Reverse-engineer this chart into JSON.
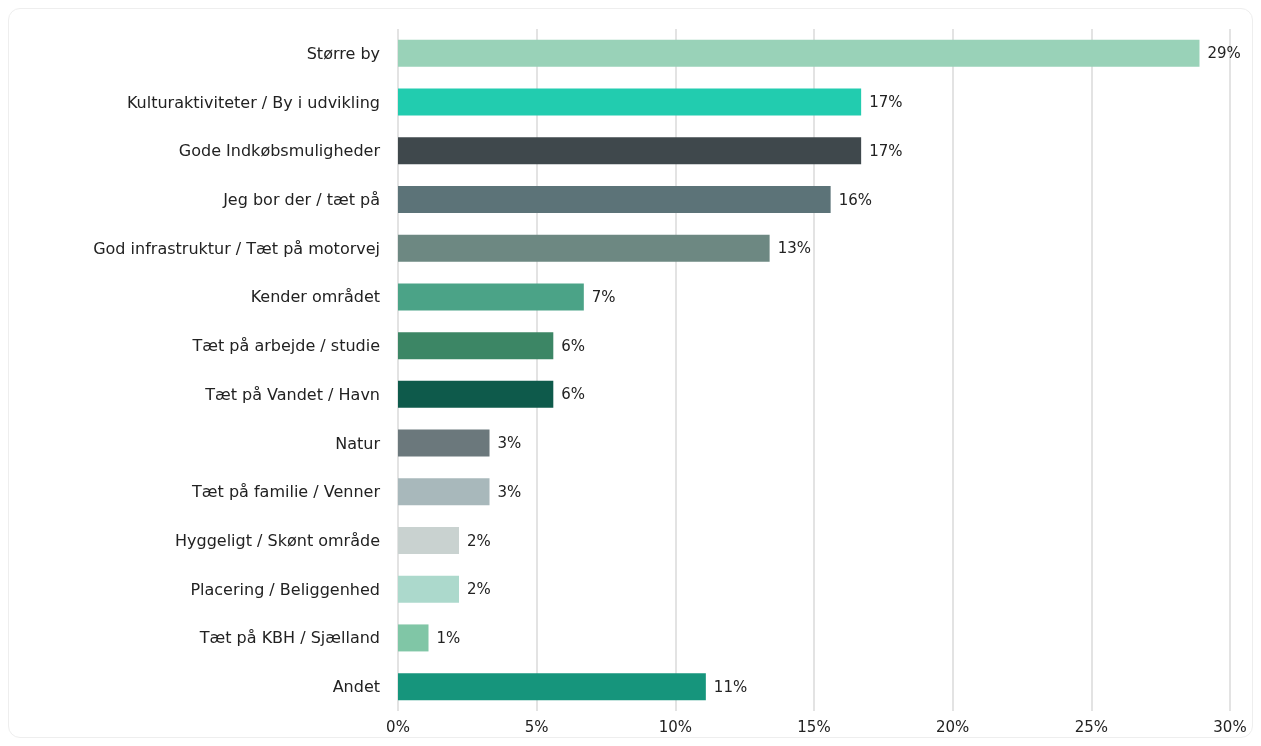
{
  "chart_data": {
    "type": "bar",
    "orientation": "horizontal",
    "categories": [
      "Større by",
      "Kulturaktiviteter / By i udvikling",
      "Gode Indkøbsmuligheder",
      "Jeg bor der / tæt på",
      "God infrastruktur / Tæt på motorvej",
      "Kender området",
      "Tæt på arbejde / studie",
      "Tæt på Vandet / Havn",
      "Natur",
      "Tæt på familie / Venner",
      "Hyggeligt / Skønt område",
      "Placering / Beliggenhed",
      "Tæt på KBH / Sjælland",
      "Andet"
    ],
    "values": [
      28.9,
      16.7,
      16.7,
      15.6,
      13.4,
      6.7,
      5.6,
      5.6,
      3.3,
      3.3,
      2.2,
      2.2,
      1.1,
      11.1
    ],
    "value_labels": [
      "29%",
      "17%",
      "17%",
      "16%",
      "13%",
      "7%",
      "6%",
      "6%",
      "3%",
      "3%",
      "2%",
      "2%",
      "1%",
      "11%"
    ],
    "colors": [
      "#99d2b8",
      "#22ccaf",
      "#3f484c",
      "#5c7378",
      "#6d8882",
      "#4ba387",
      "#3c8665",
      "#0e5a4b",
      "#6b787c",
      "#a8b8bb",
      "#c9d2d0",
      "#acd9cc",
      "#80c6a6",
      "#16957c"
    ],
    "xlim": [
      0,
      30
    ],
    "xticks": [
      {
        "value": 0,
        "label": "0%"
      },
      {
        "value": 5,
        "label": "5%"
      },
      {
        "value": 10,
        "label": "10%"
      },
      {
        "value": 15,
        "label": "15%"
      },
      {
        "value": 20,
        "label": "20%"
      },
      {
        "value": 25,
        "label": "25%"
      },
      {
        "value": 30,
        "label": "30%"
      }
    ],
    "grid": "x"
  }
}
